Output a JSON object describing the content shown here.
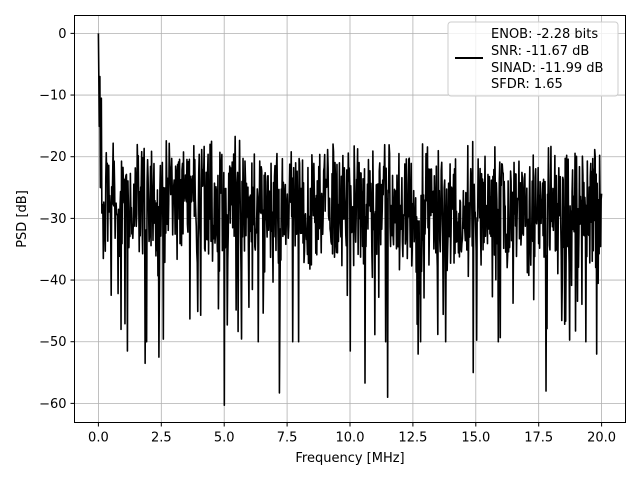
{
  "chart_data": {
    "type": "line",
    "title": "",
    "xlabel": "Frequency [MHz]",
    "ylabel": "PSD [dB]",
    "xlim": [
      -0.95,
      20.95
    ],
    "ylim": [
      -63.1,
      2.9
    ],
    "xticks": [
      0.0,
      2.5,
      5.0,
      7.5,
      10.0,
      12.5,
      15.0,
      17.5,
      20.0
    ],
    "xtick_labels": [
      "0.0",
      "2.5",
      "5.0",
      "7.5",
      "10.0",
      "12.5",
      "15.0",
      "17.5",
      "20.0"
    ],
    "yticks": [
      0,
      -10,
      -20,
      -30,
      -40,
      -50,
      -60
    ],
    "ytick_labels": [
      "0",
      "−10",
      "−20",
      "−30",
      "−40",
      "−50",
      "−60"
    ],
    "grid": true,
    "legend_position": "top-right",
    "series": [
      {
        "color": "#000000",
        "legend_lines": [
          "ENOB: -2.28 bits",
          "SNR: -11.67 dB",
          "SINAD: -11.99 dB",
          "SFDR: 1.65"
        ],
        "x_range": [
          0,
          20
        ],
        "num_points": 1024,
        "peaks": [
          {
            "x": 0.0,
            "y": 0.0
          },
          {
            "x": 0.06,
            "y": -7.0
          },
          {
            "x": 0.12,
            "y": -10.5
          },
          {
            "x": 0.2,
            "y": -14.0
          },
          {
            "x": 5.0,
            "y": -14.5
          }
        ],
        "dips": [
          {
            "x": 0.2,
            "y": -36.5
          },
          {
            "x": 0.9,
            "y": -48.0
          },
          {
            "x": 1.15,
            "y": -51.5
          },
          {
            "x": 1.85,
            "y": -53.5
          },
          {
            "x": 2.4,
            "y": -52.5
          },
          {
            "x": 5.0,
            "y": -60.3
          },
          {
            "x": 7.2,
            "y": -58.3
          },
          {
            "x": 10.0,
            "y": -51.5
          },
          {
            "x": 10.6,
            "y": -56.7
          },
          {
            "x": 11.5,
            "y": -59.0
          },
          {
            "x": 12.7,
            "y": -52.0
          },
          {
            "x": 14.9,
            "y": -55.0
          },
          {
            "x": 17.8,
            "y": -58.0
          },
          {
            "x": 19.8,
            "y": -52.0
          }
        ]
      }
    ]
  }
}
